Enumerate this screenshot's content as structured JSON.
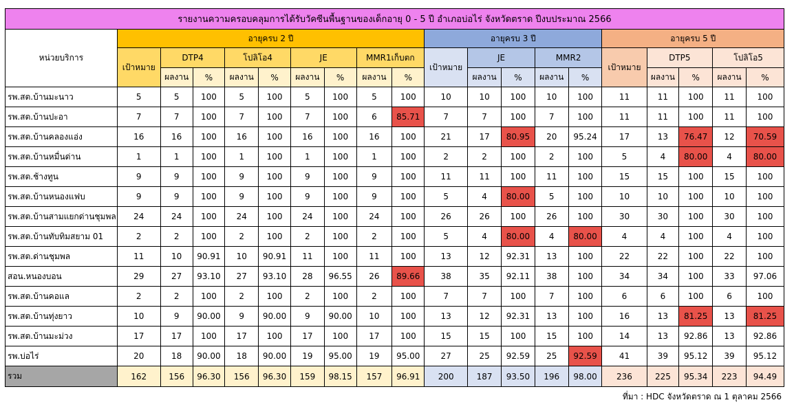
{
  "title": "รายงานความครอบคลุมการได้รับวัคซีนพื้นฐานของเด็กอายุ 0 - 5 ปี อำเภอบ่อไร่ จังหวัดตราด ปีงบประมาณ 2566",
  "headers": {
    "unit": "หน่วยบริการ",
    "age2": "อายุครบ 2 ปี",
    "age3": "อายุครบ 3 ปี",
    "age5": "อายุครบ 5 ปี",
    "target": "เป้าหมาย",
    "result": "ผลงาน",
    "pct": "%",
    "v2": [
      "DTP4",
      "โปลิโอ4",
      "JE",
      "MMR1เก็บตก"
    ],
    "v3": [
      "JE",
      "MMR2"
    ],
    "v5": [
      "DTP5",
      "โปลิโอ5"
    ]
  },
  "rows": [
    {
      "name": "รพ.สต.บ้านมะนาว",
      "vals": [
        "5",
        "5",
        "100",
        "5",
        "100",
        "5",
        "100",
        "5",
        "100",
        "10",
        "10",
        "100",
        "10",
        "100",
        "11",
        "11",
        "100",
        "11",
        "100"
      ],
      "red": []
    },
    {
      "name": "รพ.สต.บ้านปะอา",
      "vals": [
        "7",
        "7",
        "100",
        "7",
        "100",
        "7",
        "100",
        "6",
        "85.71",
        "7",
        "7",
        "100",
        "7",
        "100",
        "11",
        "11",
        "100",
        "11",
        "100"
      ],
      "red": [
        8
      ]
    },
    {
      "name": "รพ.สต.บ้านคลองแอ่ง",
      "vals": [
        "16",
        "16",
        "100",
        "16",
        "100",
        "16",
        "100",
        "16",
        "100",
        "21",
        "17",
        "80.95",
        "20",
        "95.24",
        "17",
        "13",
        "76.47",
        "12",
        "70.59"
      ],
      "red": [
        11,
        16,
        18
      ]
    },
    {
      "name": "รพ.สต.บ้านหมื่นด่าน",
      "vals": [
        "1",
        "1",
        "100",
        "1",
        "100",
        "1",
        "100",
        "1",
        "100",
        "2",
        "2",
        "100",
        "2",
        "100",
        "5",
        "4",
        "80.00",
        "4",
        "80.00"
      ],
      "red": [
        16,
        18
      ]
    },
    {
      "name": "รพ.สต.ช้างทูน",
      "vals": [
        "9",
        "9",
        "100",
        "9",
        "100",
        "9",
        "100",
        "9",
        "100",
        "11",
        "11",
        "100",
        "11",
        "100",
        "15",
        "15",
        "100",
        "15",
        "100"
      ],
      "red": []
    },
    {
      "name": "รพ.สต.บ้านหนองแฟบ",
      "vals": [
        "9",
        "9",
        "100",
        "9",
        "100",
        "9",
        "100",
        "9",
        "100",
        "5",
        "4",
        "80.00",
        "5",
        "100",
        "10",
        "10",
        "100",
        "10",
        "100"
      ],
      "red": [
        11
      ]
    },
    {
      "name": "รพ.สต.บ้านสามแยกด่านชุมพล",
      "vals": [
        "24",
        "24",
        "100",
        "24",
        "100",
        "24",
        "100",
        "24",
        "100",
        "26",
        "26",
        "100",
        "26",
        "100",
        "30",
        "30",
        "100",
        "30",
        "100"
      ],
      "red": []
    },
    {
      "name": "รพ.สต.บ้านทับทิมสยาม 01",
      "vals": [
        "2",
        "2",
        "100",
        "2",
        "100",
        "2",
        "100",
        "2",
        "100",
        "5",
        "4",
        "80.00",
        "4",
        "80.00",
        "4",
        "4",
        "100",
        "4",
        "100"
      ],
      "red": [
        11,
        13
      ]
    },
    {
      "name": "รพ.สต.ด่านชุมพล",
      "vals": [
        "11",
        "10",
        "90.91",
        "10",
        "90.91",
        "11",
        "100",
        "11",
        "100",
        "13",
        "12",
        "92.31",
        "13",
        "100",
        "22",
        "22",
        "100",
        "22",
        "100"
      ],
      "red": []
    },
    {
      "name": "สอน.หนองบอน",
      "vals": [
        "29",
        "27",
        "93.10",
        "27",
        "93.10",
        "28",
        "96.55",
        "26",
        "89.66",
        "38",
        "35",
        "92.11",
        "38",
        "100",
        "34",
        "34",
        "100",
        "33",
        "97.06"
      ],
      "red": [
        8
      ]
    },
    {
      "name": "รพ.สต.บ้านคอแล",
      "vals": [
        "2",
        "2",
        "100",
        "2",
        "100",
        "2",
        "100",
        "2",
        "100",
        "7",
        "7",
        "100",
        "7",
        "100",
        "6",
        "6",
        "100",
        "6",
        "100"
      ],
      "red": []
    },
    {
      "name": "รพ.สต.บ้านทุ่งยาว",
      "vals": [
        "10",
        "9",
        "90.00",
        "9",
        "90.00",
        "9",
        "90.00",
        "10",
        "100",
        "13",
        "12",
        "92.31",
        "13",
        "100",
        "16",
        "13",
        "81.25",
        "13",
        "81.25"
      ],
      "red": [
        16,
        18
      ]
    },
    {
      "name": "รพ.สต.บ้านมะม่วง",
      "vals": [
        "17",
        "17",
        "100",
        "17",
        "100",
        "17",
        "100",
        "17",
        "100",
        "15",
        "15",
        "100",
        "15",
        "100",
        "14",
        "13",
        "92.86",
        "13",
        "92.86"
      ],
      "red": []
    },
    {
      "name": "รพ.บ่อไร่",
      "vals": [
        "20",
        "18",
        "90.00",
        "18",
        "90.00",
        "19",
        "95.00",
        "19",
        "95.00",
        "27",
        "25",
        "92.59",
        "25",
        "92.59",
        "41",
        "39",
        "95.12",
        "39",
        "95.12"
      ],
      "red": [
        13
      ]
    }
  ],
  "total": {
    "name": "รวม",
    "vals": [
      "162",
      "156",
      "96.30",
      "156",
      "96.30",
      "159",
      "98.15",
      "157",
      "96.91",
      "200",
      "187",
      "93.50",
      "196",
      "98.00",
      "236",
      "225",
      "95.34",
      "223",
      "94.49"
    ]
  },
  "source": "ที่มา : HDC จังหวัดตราด ณ 1 ตุลาคม  2566",
  "colors": {
    "age2": "#ffc000",
    "age3": "#8ea9db",
    "age5": "#f4b084",
    "title": "#ee82ee",
    "below_target": "#e8524a"
  }
}
